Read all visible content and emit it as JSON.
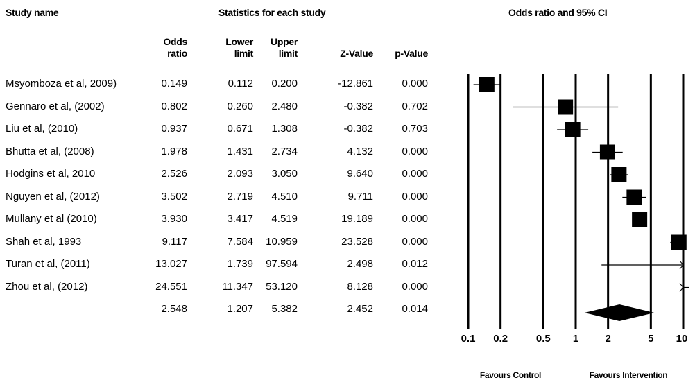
{
  "headers": {
    "study": "Study name",
    "stats": "Statistics for each study",
    "plot": "Odds ratio and 95% CI"
  },
  "columns": {
    "or_line1": "Odds",
    "or_line2": "ratio",
    "lower_line1": "Lower",
    "lower_line2": "limit",
    "upper_line1": "Upper",
    "upper_line2": "limit",
    "z": "Z-Value",
    "p": "p-Value"
  },
  "rows": [
    {
      "name": "Msyomboza et al, 2009)",
      "or": "0.149",
      "lower": "0.112",
      "upper": "0.200",
      "z": "-12.861",
      "p": "0.000"
    },
    {
      "name": "Gennaro et al, (2002)",
      "or": "0.802",
      "lower": "0.260",
      "upper": "2.480",
      "z": "-0.382",
      "p": "0.702"
    },
    {
      "name": "Liu et al, (2010)",
      "or": "0.937",
      "lower": "0.671",
      "upper": "1.308",
      "z": "-0.382",
      "p": "0.703"
    },
    {
      "name": "Bhutta et al, (2008)",
      "or": "1.978",
      "lower": "1.431",
      "upper": "2.734",
      "z": "4.132",
      "p": "0.000"
    },
    {
      "name": "Hodgins et al, 2010",
      "or": "2.526",
      "lower": "2.093",
      "upper": "3.050",
      "z": "9.640",
      "p": "0.000"
    },
    {
      "name": "Nguyen  et al, (2012)",
      "or": "3.502",
      "lower": "2.719",
      "upper": "4.510",
      "z": "9.711",
      "p": "0.000"
    },
    {
      "name": "Mullany et al (2010)",
      "or": "3.930",
      "lower": "3.417",
      "upper": "4.519",
      "z": "19.189",
      "p": "0.000"
    },
    {
      "name": "Shah et al, 1993",
      "or": "9.117",
      "lower": "7.584",
      "upper": "10.959",
      "z": "23.528",
      "p": "0.000"
    },
    {
      "name": "Turan et al, (2011)",
      "or": "13.027",
      "lower": "1.739",
      "upper": "97.594",
      "z": "2.498",
      "p": "0.012"
    },
    {
      "name": "Zhou et al, (2012)",
      "or": "24.551",
      "lower": "11.347",
      "upper": "53.120",
      "z": "8.128",
      "p": "0.000"
    },
    {
      "name": "",
      "or": "2.548",
      "lower": "1.207",
      "upper": "5.382",
      "z": "2.452",
      "p": "0.014"
    }
  ],
  "chart_data": {
    "type": "forest",
    "title": "Odds ratio and 95% CI",
    "x_scale": "log",
    "xlim": [
      0.1,
      10
    ],
    "x_ticks": [
      0.1,
      0.2,
      0.5,
      1,
      2,
      5,
      10
    ],
    "x_tick_labels": [
      "0.1",
      "0.2",
      "0.5",
      "1",
      "2",
      "5",
      "10"
    ],
    "studies": [
      {
        "odds_ratio": 0.149,
        "lower": 0.112,
        "upper": 0.2
      },
      {
        "odds_ratio": 0.802,
        "lower": 0.26,
        "upper": 2.48
      },
      {
        "odds_ratio": 0.937,
        "lower": 0.671,
        "upper": 1.308
      },
      {
        "odds_ratio": 1.978,
        "lower": 1.431,
        "upper": 2.734
      },
      {
        "odds_ratio": 2.526,
        "lower": 2.093,
        "upper": 3.05
      },
      {
        "odds_ratio": 3.502,
        "lower": 2.719,
        "upper": 4.51
      },
      {
        "odds_ratio": 3.93,
        "lower": 3.417,
        "upper": 4.519
      },
      {
        "odds_ratio": 9.117,
        "lower": 7.584,
        "upper": 10.959
      },
      {
        "odds_ratio": 13.027,
        "lower": 1.739,
        "upper": 97.594
      },
      {
        "odds_ratio": 24.551,
        "lower": 11.347,
        "upper": 53.12
      }
    ],
    "summary": {
      "odds_ratio": 2.548,
      "lower": 1.207,
      "upper": 5.382
    },
    "footer_left": "Favours Control",
    "footer_right": "Favours Intervention"
  }
}
